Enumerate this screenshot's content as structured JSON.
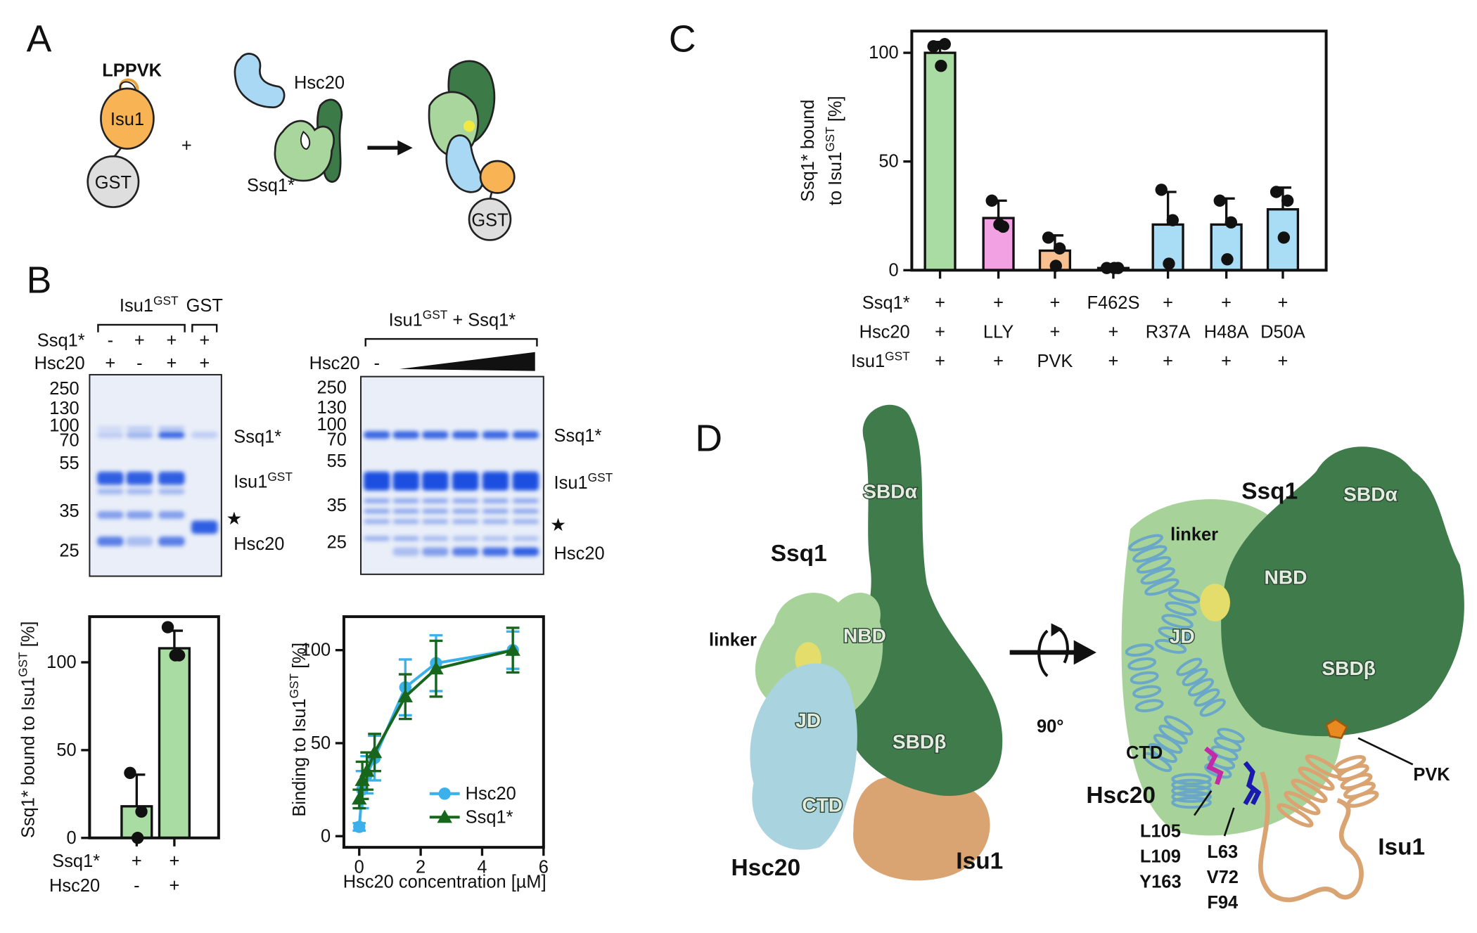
{
  "panel_A": {
    "label": "A",
    "isu1_tail": "LPPVK",
    "isu1": "Isu1",
    "gst": "GST",
    "plus": "+",
    "hsc20": "Hsc20",
    "ssq1": "Ssq1*",
    "complex_gst": "GST"
  },
  "panel_B": {
    "label": "B",
    "gel_left": {
      "header": [
        {
          "text": "Isu1",
          "sup": "GST"
        },
        "GST"
      ],
      "rows": [
        {
          "label": "Ssq1*",
          "cells": [
            "-",
            "+",
            "+",
            "+"
          ]
        },
        {
          "label": "Hsc20",
          "cells": [
            "+",
            "-",
            "+",
            "+"
          ]
        }
      ],
      "markers": [
        250,
        130,
        100,
        70,
        55,
        35,
        25
      ],
      "bands": [
        "Ssq1*",
        {
          "text": "Isu1",
          "sup": "GST"
        },
        "★",
        "Hsc20"
      ]
    },
    "gel_right": {
      "header": {
        "text": "Isu1",
        "sup": "GST",
        "after": " + Ssq1*"
      },
      "row_label": "Hsc20",
      "row_first": "-",
      "markers": [
        250,
        130,
        100,
        70,
        55,
        35,
        25
      ],
      "bands": [
        "Ssq1*",
        {
          "text": "Isu1",
          "sup": "GST"
        },
        "★",
        "Hsc20"
      ]
    }
  },
  "panel_C": {
    "label": "C"
  },
  "panel_D": {
    "label": "D",
    "rotation": "90°",
    "left": {
      "ssq1": "Ssq1",
      "hsc20": "Hsc20",
      "isu1": "Isu1",
      "linker": "linker",
      "domains": [
        "SBDα",
        "NBD",
        "JD",
        "SBDβ",
        "CTD"
      ]
    },
    "right": {
      "ssq1": "Ssq1",
      "hsc20": "Hsc20",
      "isu1": "Isu1",
      "linker": "linker",
      "pvk": "PVK",
      "domains": [
        "SBDα",
        "NBD",
        "JD",
        "SBDβ",
        "CTD"
      ],
      "hsc20_residues": [
        "L105",
        "L109",
        "Y163"
      ],
      "isu1_residues": [
        "L63",
        "V72",
        "F94"
      ]
    }
  },
  "chart_data": [
    {
      "type": "bar",
      "ylabel": [
        "Ssq1* bound",
        {
          "text": "to Isu1",
          "sup": "GST",
          "after": " [%]"
        }
      ],
      "values": [
        100,
        24,
        9,
        1,
        21,
        21,
        28
      ],
      "errors": [
        5,
        8,
        7,
        0.5,
        15,
        12,
        10
      ],
      "points": [
        [
          103,
          104,
          94
        ],
        [
          32,
          20,
          21
        ],
        [
          15,
          10,
          2
        ],
        [
          1,
          1,
          1
        ],
        [
          37,
          23,
          3
        ],
        [
          32,
          22,
          5
        ],
        [
          36,
          32,
          15
        ]
      ],
      "colors": [
        "#a9dca2",
        "#f2a2e2",
        "#f8c090",
        "#a9ddf6",
        "#a9ddf6",
        "#a9ddf6",
        "#a9ddf6"
      ],
      "ylim": [
        0,
        110
      ],
      "yticks": [
        0,
        50,
        100
      ],
      "table": [
        {
          "label": "Ssq1*",
          "cells": [
            "+",
            "+",
            "+",
            "F462S",
            "+",
            "+",
            "+"
          ],
          "colors": [
            "#111111",
            "#111111",
            "#111111",
            "#e0882a",
            "#111111",
            "#111111",
            "#111111"
          ]
        },
        {
          "label": "Hsc20",
          "cells": [
            "+",
            "LLY",
            "+",
            "+",
            "R37A",
            "H48A",
            "D50A"
          ],
          "colors": [
            "#111111",
            "#c42cb4",
            "#111111",
            "#111111",
            "#32b4d6",
            "#32b4d6",
            "#32b4d6"
          ]
        },
        {
          "label": {
            "text": "Isu1",
            "sup": "GST"
          },
          "cells": [
            "+",
            "+",
            "PVK",
            "+",
            "+",
            "+",
            "+"
          ],
          "colors": [
            "#111111",
            "#111111",
            "#e0882a",
            "#111111",
            "#111111",
            "#111111",
            "#111111"
          ]
        }
      ]
    },
    {
      "type": "bar",
      "ylabel": {
        "text": "Ssq1* bound to Isu1",
        "sup": "GST",
        "after": " [%]"
      },
      "values": [
        18,
        108
      ],
      "errors": [
        18,
        10
      ],
      "points": [
        [
          37,
          15,
          0
        ],
        [
          120,
          104,
          104
        ]
      ],
      "color": "#a9dca2",
      "ylim": [
        0,
        126
      ],
      "yticks": [
        0,
        50,
        100
      ],
      "table": [
        {
          "label": "Ssq1*",
          "cells": [
            "+",
            "+"
          ]
        },
        {
          "label": "Hsc20",
          "cells": [
            "-",
            "+"
          ]
        }
      ]
    },
    {
      "type": "line",
      "xlabel": "Hsc20 concentration [µM]",
      "ylabel": {
        "text": "Binding to Isu1",
        "sup": "GST",
        "after": " [%]"
      },
      "x": [
        0,
        0.1,
        0.25,
        0.5,
        1.5,
        2.5,
        5
      ],
      "series": [
        {
          "name": "Hsc20",
          "color": "#3cb0ea",
          "marker": "circle",
          "values": [
            5,
            25,
            33,
            42,
            80,
            93,
            100
          ],
          "errors": [
            2,
            10,
            10,
            12,
            15,
            15,
            10
          ]
        },
        {
          "name": "Ssq1*",
          "color": "#17661c",
          "marker": "triangle",
          "values": [
            20,
            30,
            35,
            45,
            75,
            90,
            100
          ],
          "errors": [
            5,
            10,
            10,
            10,
            12,
            15,
            12
          ]
        }
      ],
      "xlim": [
        -0.5,
        6
      ],
      "ylim": [
        -6,
        118
      ],
      "xticks": [
        0,
        2,
        4,
        6
      ],
      "yticks": [
        0,
        50,
        100
      ],
      "legend": "lower right"
    }
  ]
}
